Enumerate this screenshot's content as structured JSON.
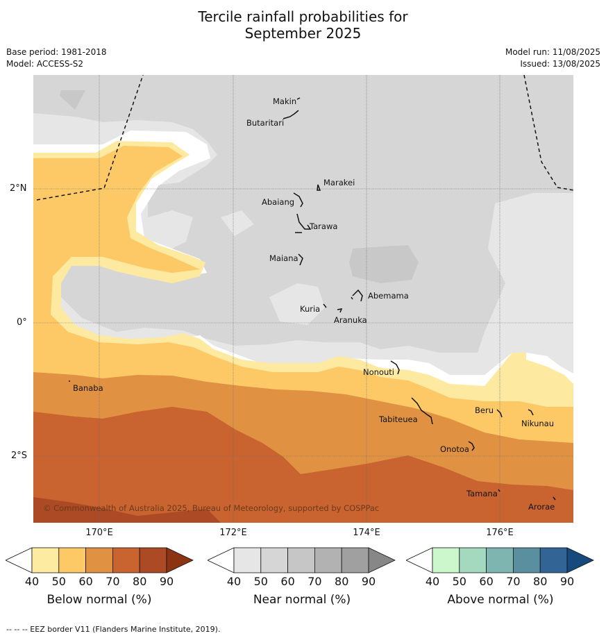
{
  "title": {
    "line1": "Tercile rainfall probabilities for",
    "line2": "September 2025"
  },
  "meta": {
    "base_period": "Base period: 1981-2018",
    "model": "Model: ACCESS-S2",
    "model_run": "Model run: 11/08/2025",
    "issued": "Issued: 13/08/2025"
  },
  "map": {
    "latitude_labels": [
      "2°N",
      "0°",
      "2°S"
    ],
    "longitude_labels": [
      "170°E",
      "172°E",
      "174°E",
      "176°E"
    ],
    "copyright": "© Commonwealth of Australia 2025, Bureau of Meteorology, supported by COSPPac",
    "islands": [
      {
        "name": "Makin"
      },
      {
        "name": "Butaritari"
      },
      {
        "name": "Marakei"
      },
      {
        "name": "Abaiang"
      },
      {
        "name": "Tarawa"
      },
      {
        "name": "Maiana"
      },
      {
        "name": "Abemama"
      },
      {
        "name": "Kuria"
      },
      {
        "name": "Aranuka"
      },
      {
        "name": "Nonouti"
      },
      {
        "name": "Banaba"
      },
      {
        "name": "Beru"
      },
      {
        "name": "Tabiteuea"
      },
      {
        "name": "Nikunau"
      },
      {
        "name": "Onotoa"
      },
      {
        "name": "Tamana"
      },
      {
        "name": "Arorae"
      }
    ],
    "colors": {
      "near_normal_light": "#e6e6e6",
      "near_normal_mid": "#d6d6d6",
      "near_normal_dark": "#c8c8c8",
      "below_40": "#fde9a0",
      "below_50": "#fdc966",
      "below_60": "#e09242",
      "below_70": "#c96431",
      "below_80": "#ad4a26"
    }
  },
  "colorbars": [
    {
      "title": "Below normal (%)",
      "ticks": [
        "40",
        "50",
        "60",
        "70",
        "80",
        "90"
      ],
      "colors": [
        "#ffffff",
        "#feeba2",
        "#fdc966",
        "#e09242",
        "#c96431",
        "#ad4a26",
        "#8c3314"
      ]
    },
    {
      "title": "Near normal (%)",
      "ticks": [
        "40",
        "50",
        "60",
        "70",
        "80",
        "90"
      ],
      "colors": [
        "#ffffff",
        "#e6e6e6",
        "#d6d6d6",
        "#c6c6c6",
        "#b2b2b2",
        "#a0a0a0",
        "#878787"
      ]
    },
    {
      "title": "Above normal (%)",
      "ticks": [
        "40",
        "50",
        "60",
        "70",
        "80",
        "90"
      ],
      "colors": [
        "#ffffff",
        "#ccf7cc",
        "#a4d8bf",
        "#7fb5b0",
        "#5a8fa0",
        "#336496",
        "#164a7c"
      ]
    }
  ],
  "footnote": "--  --  -- EEZ border V11 (Flanders Marine Institute, 2019)."
}
